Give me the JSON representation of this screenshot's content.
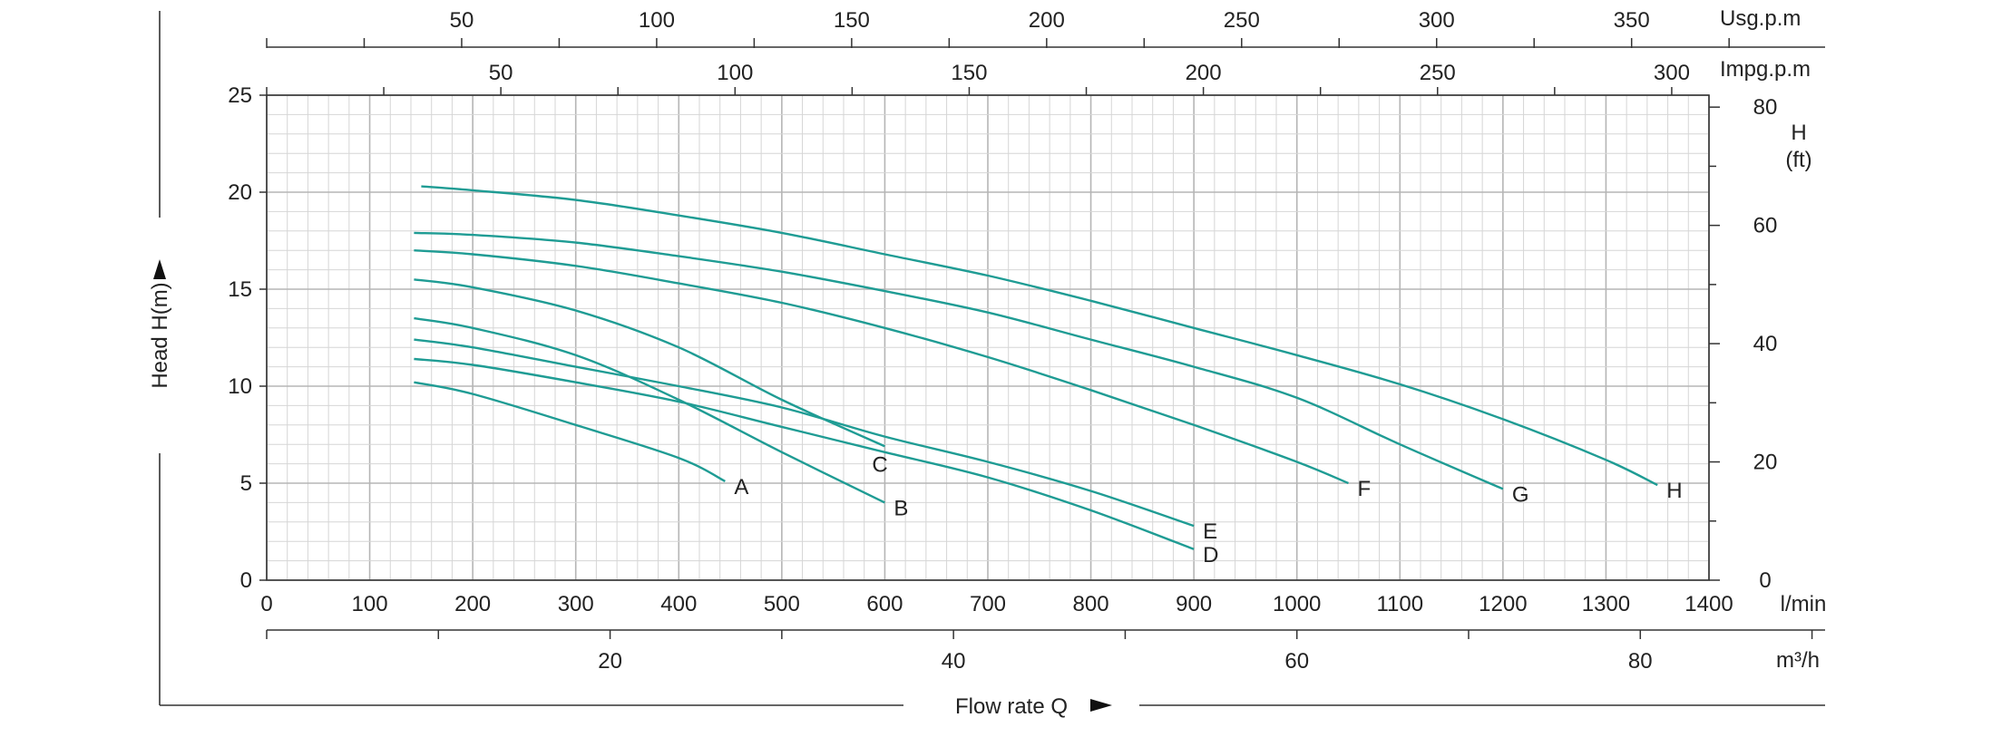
{
  "chart_data": {
    "type": "line",
    "x_unit": "l/min",
    "xlim": [
      0,
      1400
    ],
    "y_unit": "m",
    "ylim": [
      0,
      25
    ],
    "x_ticks": [
      "0",
      "100",
      "200",
      "300",
      "400",
      "500",
      "600",
      "700",
      "800",
      "900",
      "1000",
      "1100",
      "1200",
      "1300",
      "1400"
    ],
    "y_ticks": [
      "0",
      "5",
      "10",
      "15",
      "20",
      "25"
    ],
    "xlabel": "Flow rate Q",
    "ylabel": "Head H(m)",
    "grid": true,
    "secondary_axes": {
      "right": {
        "title_line1": "H",
        "title_line2": "(ft)",
        "ticks": [
          "0",
          "20",
          "40",
          "60",
          "80"
        ],
        "values": [
          0,
          20,
          40,
          60,
          80
        ],
        "ft_per_m": 3.2808
      },
      "top_usgpm": {
        "unit": "Usg.p.m",
        "ticks": [
          "50",
          "100",
          "150",
          "200",
          "250",
          "300",
          "350"
        ],
        "values": [
          50,
          100,
          150,
          200,
          250,
          300,
          350
        ],
        "lpm_per_unit": 3.7854
      },
      "top_impgpm": {
        "unit": "Impg.p.m",
        "ticks": [
          "50",
          "100",
          "150",
          "200",
          "250",
          "300"
        ],
        "values": [
          50,
          100,
          150,
          200,
          250,
          300
        ],
        "lpm_per_unit": 4.5461
      },
      "bottom_m3h": {
        "unit": "m³/h",
        "ticks": [
          "20",
          "40",
          "60",
          "80"
        ],
        "values": [
          20,
          40,
          60,
          80
        ],
        "lpm_per_unit": 16.6667
      }
    },
    "series": [
      {
        "name": "A",
        "color": "#1f9c94",
        "points": [
          [
            143,
            10.2
          ],
          [
            200,
            9.6
          ],
          [
            300,
            8.0
          ],
          [
            400,
            6.3
          ],
          [
            445,
            5.1
          ]
        ]
      },
      {
        "name": "B",
        "color": "#1f9c94",
        "points": [
          [
            143,
            13.5
          ],
          [
            200,
            13.0
          ],
          [
            300,
            11.6
          ],
          [
            400,
            9.3
          ],
          [
            500,
            6.6
          ],
          [
            600,
            4.0
          ]
        ]
      },
      {
        "name": "C",
        "color": "#1f9c94",
        "points": [
          [
            143,
            15.5
          ],
          [
            200,
            15.1
          ],
          [
            300,
            13.9
          ],
          [
            400,
            12.0
          ],
          [
            500,
            9.3
          ],
          [
            600,
            6.9
          ]
        ]
      },
      {
        "name": "D",
        "color": "#1f9c94",
        "points": [
          [
            143,
            11.4
          ],
          [
            200,
            11.1
          ],
          [
            300,
            10.2
          ],
          [
            400,
            9.2
          ],
          [
            500,
            7.9
          ],
          [
            600,
            6.6
          ],
          [
            700,
            5.3
          ],
          [
            800,
            3.6
          ],
          [
            900,
            1.6
          ]
        ]
      },
      {
        "name": "E",
        "color": "#1f9c94",
        "points": [
          [
            143,
            12.4
          ],
          [
            200,
            12.0
          ],
          [
            300,
            11.0
          ],
          [
            400,
            10.0
          ],
          [
            500,
            8.9
          ],
          [
            600,
            7.4
          ],
          [
            700,
            6.1
          ],
          [
            800,
            4.6
          ],
          [
            900,
            2.8
          ]
        ]
      },
      {
        "name": "F",
        "color": "#1f9c94",
        "points": [
          [
            143,
            17.0
          ],
          [
            200,
            16.8
          ],
          [
            300,
            16.2
          ],
          [
            400,
            15.3
          ],
          [
            500,
            14.3
          ],
          [
            600,
            13.0
          ],
          [
            700,
            11.5
          ],
          [
            800,
            9.8
          ],
          [
            900,
            8.0
          ],
          [
            1000,
            6.1
          ],
          [
            1050,
            5.0
          ]
        ]
      },
      {
        "name": "G",
        "color": "#1f9c94",
        "points": [
          [
            143,
            17.9
          ],
          [
            200,
            17.8
          ],
          [
            300,
            17.4
          ],
          [
            400,
            16.7
          ],
          [
            500,
            15.9
          ],
          [
            600,
            14.9
          ],
          [
            700,
            13.8
          ],
          [
            800,
            12.4
          ],
          [
            900,
            11.0
          ],
          [
            1000,
            9.4
          ],
          [
            1100,
            7.0
          ],
          [
            1200,
            4.7
          ]
        ]
      },
      {
        "name": "H",
        "color": "#1f9c94",
        "points": [
          [
            150,
            20.3
          ],
          [
            200,
            20.1
          ],
          [
            300,
            19.6
          ],
          [
            400,
            18.8
          ],
          [
            500,
            17.9
          ],
          [
            600,
            16.8
          ],
          [
            700,
            15.7
          ],
          [
            800,
            14.4
          ],
          [
            900,
            13.0
          ],
          [
            1000,
            11.6
          ],
          [
            1100,
            10.1
          ],
          [
            1200,
            8.3
          ],
          [
            1300,
            6.2
          ],
          [
            1350,
            4.9
          ]
        ]
      }
    ],
    "colors": {
      "curve": "#1f9c94",
      "grid_minor": "#d6d6d6",
      "grid_major": "#b5b5b5",
      "axis": "#333333"
    }
  }
}
